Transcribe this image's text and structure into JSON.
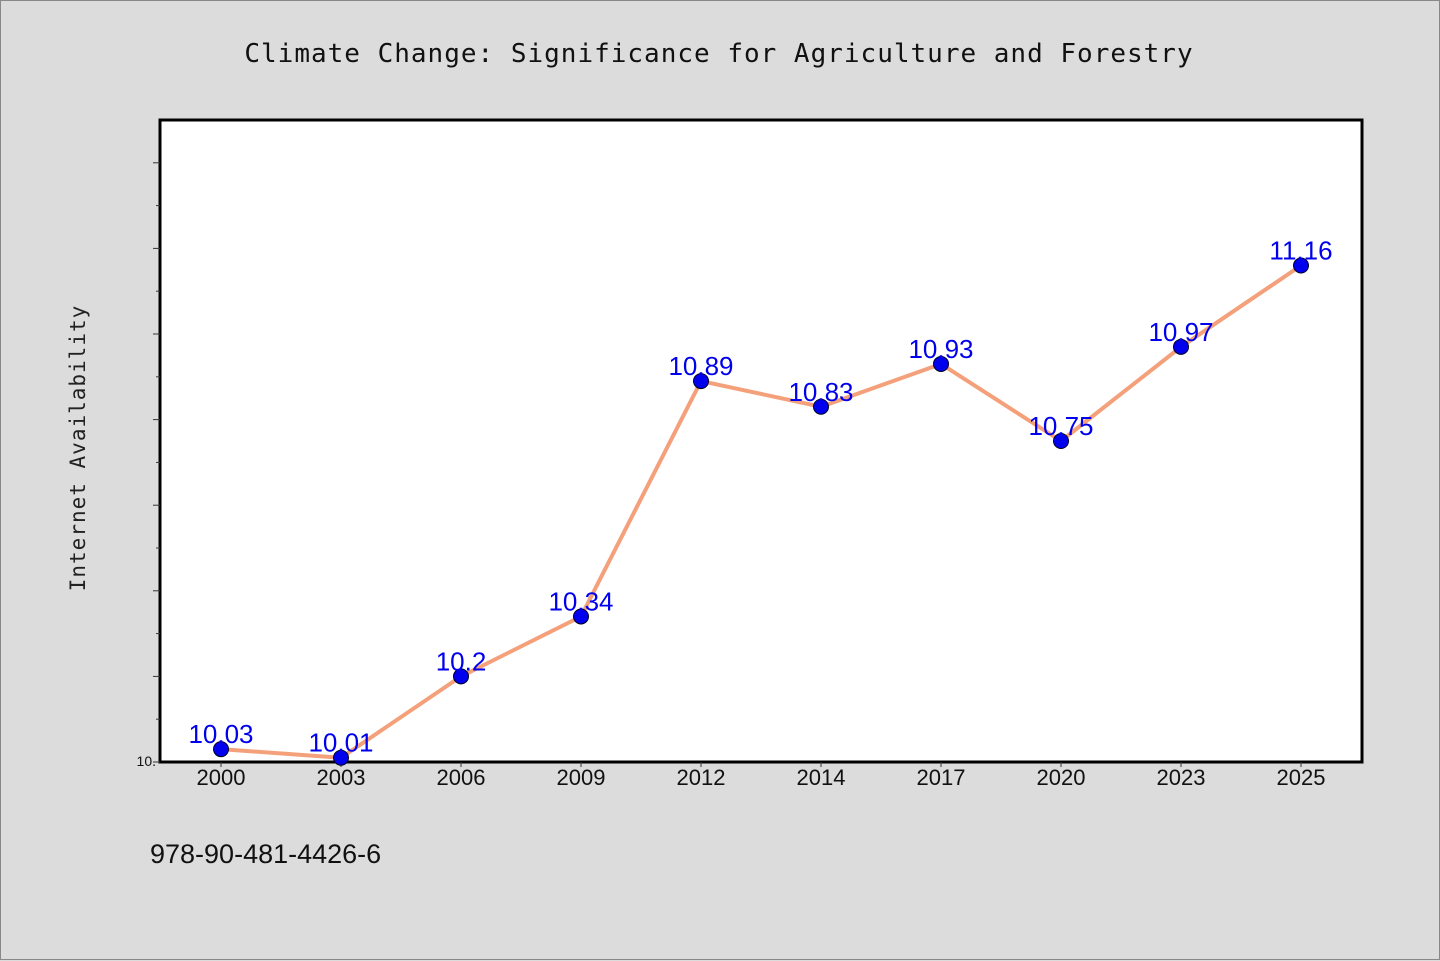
{
  "chart_data": {
    "type": "line",
    "title": "Climate Change: Significance for Agriculture and Forestry",
    "ylabel": "Internet Availability",
    "xlabel": "",
    "categories": [
      "2000",
      "2003",
      "2006",
      "2009",
      "2012",
      "2014",
      "2017",
      "2020",
      "2023",
      "2025"
    ],
    "series": [
      {
        "values": [
          10.03,
          10.01,
          10.2,
          10.34,
          10.89,
          10.83,
          10.93,
          10.75,
          10.97,
          11.16
        ],
        "data_labels": [
          "10.03",
          "10.01",
          "10.2",
          "10.34",
          "10.89",
          "10.83",
          "10.93",
          "10.75",
          "10.97",
          "11.16"
        ]
      }
    ],
    "ylim": [
      10.0,
      11.5
    ],
    "ytick_labels": [
      "10."
    ],
    "grid": false,
    "colors": {
      "line": "#f4a07a",
      "marker": "#0000ee",
      "data_label": "#0000ee",
      "plot_background": "#ffffff",
      "page_background": "#dcdcdc"
    }
  },
  "footer_text": "978-90-481-4426-6"
}
